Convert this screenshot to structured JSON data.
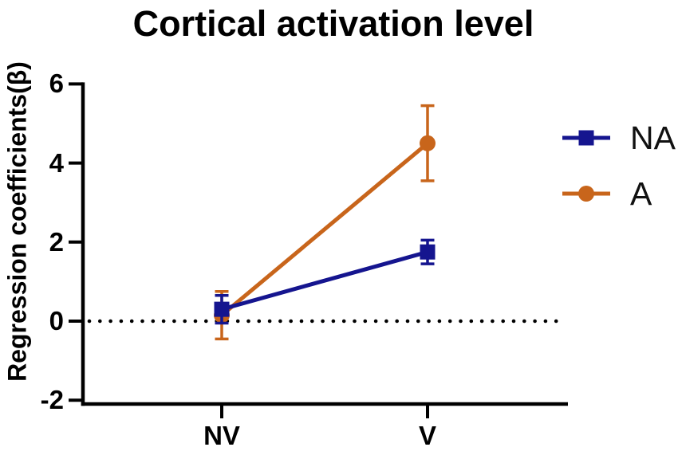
{
  "title": "Cortical activation level",
  "chart_data": {
    "type": "line",
    "title": "Cortical activation level",
    "xlabel": "",
    "ylabel": "Regression coefficients(β)",
    "categories": [
      "NV",
      "V"
    ],
    "yticks": [
      6,
      4,
      2,
      0,
      -2
    ],
    "ylim": [
      -2,
      6
    ],
    "grid": false,
    "baseline": {
      "value": 0,
      "style": "dotted",
      "color": "#000000"
    },
    "legend_position": "right-outside",
    "series": [
      {
        "name": "NA",
        "marker": "square",
        "color": "#15158f",
        "values": [
          0.3,
          1.75
        ],
        "errors": [
          0.35,
          0.3
        ]
      },
      {
        "name": "A",
        "marker": "circle",
        "color": "#c8651b",
        "values": [
          0.15,
          4.5
        ],
        "errors": [
          0.6,
          0.95
        ]
      }
    ]
  },
  "axis_color": "#000000"
}
